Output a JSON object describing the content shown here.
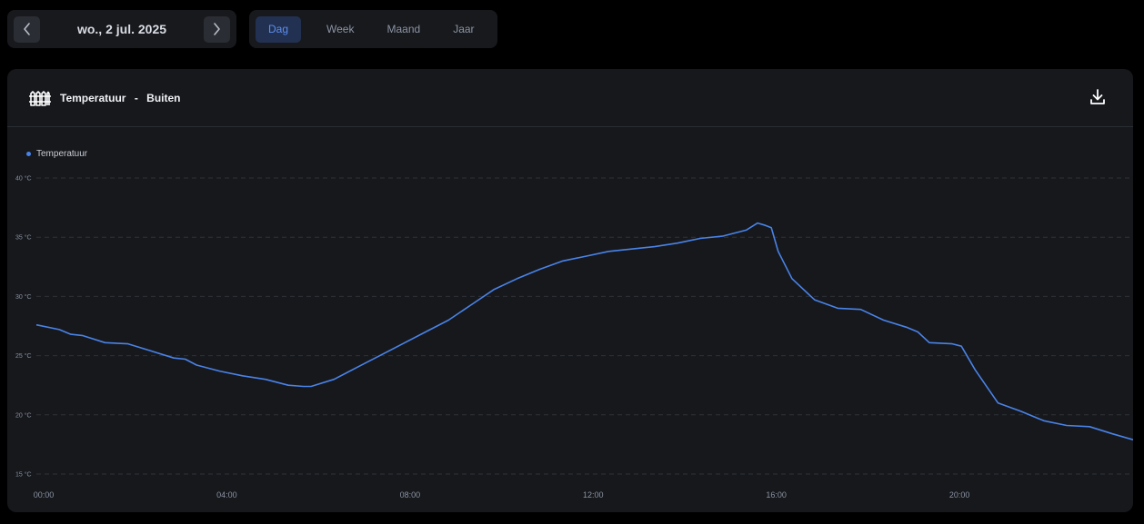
{
  "date_nav": {
    "date_label": "wo., 2 jul. 2025",
    "prev_icon": "chevron-left-icon",
    "next_icon": "chevron-right-icon"
  },
  "period_tabs": [
    {
      "label": "Dag",
      "active": true
    },
    {
      "label": "Week",
      "active": false
    },
    {
      "label": "Maand",
      "active": false
    },
    {
      "label": "Jaar",
      "active": false
    }
  ],
  "card": {
    "icon": "fence-icon",
    "title": "Temperatuur",
    "separator": "-",
    "subtitle": "Buiten",
    "download_icon": "download-icon"
  },
  "colors": {
    "accent": "#4a83e8",
    "background": "#000000",
    "card": "#16181c"
  },
  "chart_data": {
    "type": "line",
    "legend": "Temperatuur",
    "legend_position": "top-left",
    "grid": true,
    "ylim": [
      15,
      40
    ],
    "yticks": [
      15,
      20,
      25,
      30,
      35,
      40
    ],
    "ytick_labels": [
      "15 °C",
      "20 °C",
      "25 °C",
      "30 °C",
      "35 °C",
      "40 °C"
    ],
    "xlim": [
      0,
      23.95
    ],
    "xticks": [
      0,
      4,
      8,
      12,
      16,
      20
    ],
    "xtick_labels": [
      "00:00",
      "04:00",
      "08:00",
      "12:00",
      "16:00",
      "20:00"
    ],
    "series": [
      {
        "name": "Temperatuur",
        "x": [
          0,
          0.5,
          0.75,
          1.0,
          1.5,
          2.0,
          2.5,
          3.0,
          3.25,
          3.5,
          4.0,
          4.5,
          5.0,
          5.5,
          5.83,
          6.0,
          6.5,
          7.0,
          7.5,
          8.0,
          8.5,
          9.0,
          9.5,
          10.0,
          10.5,
          11.0,
          11.5,
          12.0,
          12.5,
          13.0,
          13.5,
          14.0,
          14.5,
          15.0,
          15.5,
          15.75,
          15.92,
          16.05,
          16.2,
          16.5,
          16.75,
          17.0,
          17.5,
          18.0,
          18.5,
          19.0,
          19.25,
          19.5,
          20.0,
          20.2,
          20.5,
          21.0,
          21.5,
          22.0,
          22.5,
          23.0,
          23.5,
          23.95
        ],
        "values": [
          27.6,
          27.2,
          26.8,
          26.7,
          26.1,
          26.0,
          25.4,
          24.8,
          24.7,
          24.2,
          23.7,
          23.3,
          23.0,
          22.5,
          22.4,
          22.4,
          23.0,
          24.0,
          25.0,
          26.0,
          27.0,
          28.0,
          29.3,
          30.6,
          31.5,
          32.3,
          33.0,
          33.4,
          33.8,
          34.0,
          34.2,
          34.5,
          34.9,
          35.1,
          35.6,
          36.2,
          36.0,
          35.8,
          33.8,
          31.5,
          30.6,
          29.7,
          29.0,
          28.9,
          28.0,
          27.4,
          27.0,
          26.1,
          26.0,
          25.8,
          23.8,
          21.0,
          20.3,
          19.5,
          19.1,
          19.0,
          18.4,
          17.9
        ]
      }
    ]
  }
}
